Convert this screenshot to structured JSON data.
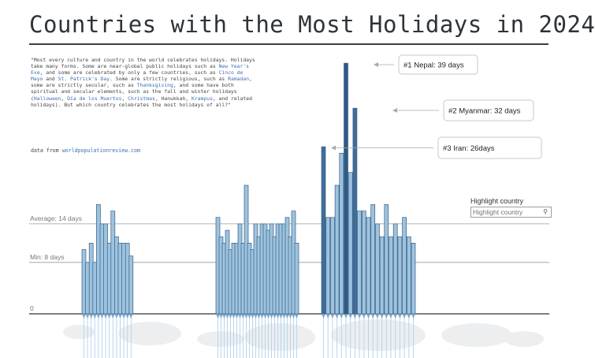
{
  "title": "Countries with the Most Holidays in 2024",
  "intro": [
    {
      "t": "\"Most every culture and country in the world celebrates holidays. Holidays take many forms. Some are near-global public holidays such as "
    },
    {
      "t": "New Year's Eve",
      "link": true
    },
    {
      "t": ", and some are celebrated by only a few countries, such as "
    },
    {
      "t": "Cinco de Mayo",
      "link": true
    },
    {
      "t": " and "
    },
    {
      "t": "St. Patrick's Day",
      "link": true
    },
    {
      "t": ". Some are strictly religious, such as "
    },
    {
      "t": "Ramadan",
      "link": true
    },
    {
      "t": ", some are strictly secular, such as "
    },
    {
      "t": "Thanksgiving",
      "link": true
    },
    {
      "t": ", and some have both spiritual and secular elements, such as the fall and winter holidays ("
    },
    {
      "t": "Halloween",
      "link": true
    },
    {
      "t": ", "
    },
    {
      "t": "Día de los Muertos",
      "link": true
    },
    {
      "t": ", "
    },
    {
      "t": "Christmas",
      "link": true
    },
    {
      "t": ", Hanukkah, "
    },
    {
      "t": "Krampus",
      "link": true
    },
    {
      "t": ", and related holidays). But which country celebrates the most holidays of all?\""
    }
  ],
  "source": {
    "prefix": "data from ",
    "link": "worldpopulationreview.com"
  },
  "highlight": {
    "label": "Highlight country",
    "placeholder": "Highlight country"
  },
  "chart_data": {
    "type": "bar",
    "ylim": [
      0,
      40
    ],
    "reference_lines": [
      {
        "label": "Average: 14 days",
        "value": 14
      },
      {
        "label": "Min: 8 days",
        "value": 8
      },
      {
        "label": "0",
        "value": 0
      }
    ],
    "annotations": [
      {
        "label": "#1 Nepal: 39 days",
        "value": 39
      },
      {
        "label": "#2 Myanmar: 32 days",
        "value": 32
      },
      {
        "label": "#3 Iran: 26days",
        "value": 26
      }
    ],
    "values": [
      10,
      8,
      11,
      8,
      17,
      14,
      14,
      11,
      16,
      12,
      11,
      11,
      11,
      9,
      15,
      12,
      11,
      13,
      10,
      11,
      11,
      14,
      11,
      20,
      11,
      10,
      14,
      12,
      14,
      14,
      13,
      14,
      12,
      14,
      14,
      14,
      15,
      12,
      16,
      11,
      26,
      15,
      15,
      20,
      25,
      39,
      22,
      32,
      16,
      16,
      15,
      17,
      14,
      12,
      17,
      12,
      14,
      12,
      15,
      12,
      11
    ],
    "highlighted": [
      45,
      47,
      40
    ]
  }
}
